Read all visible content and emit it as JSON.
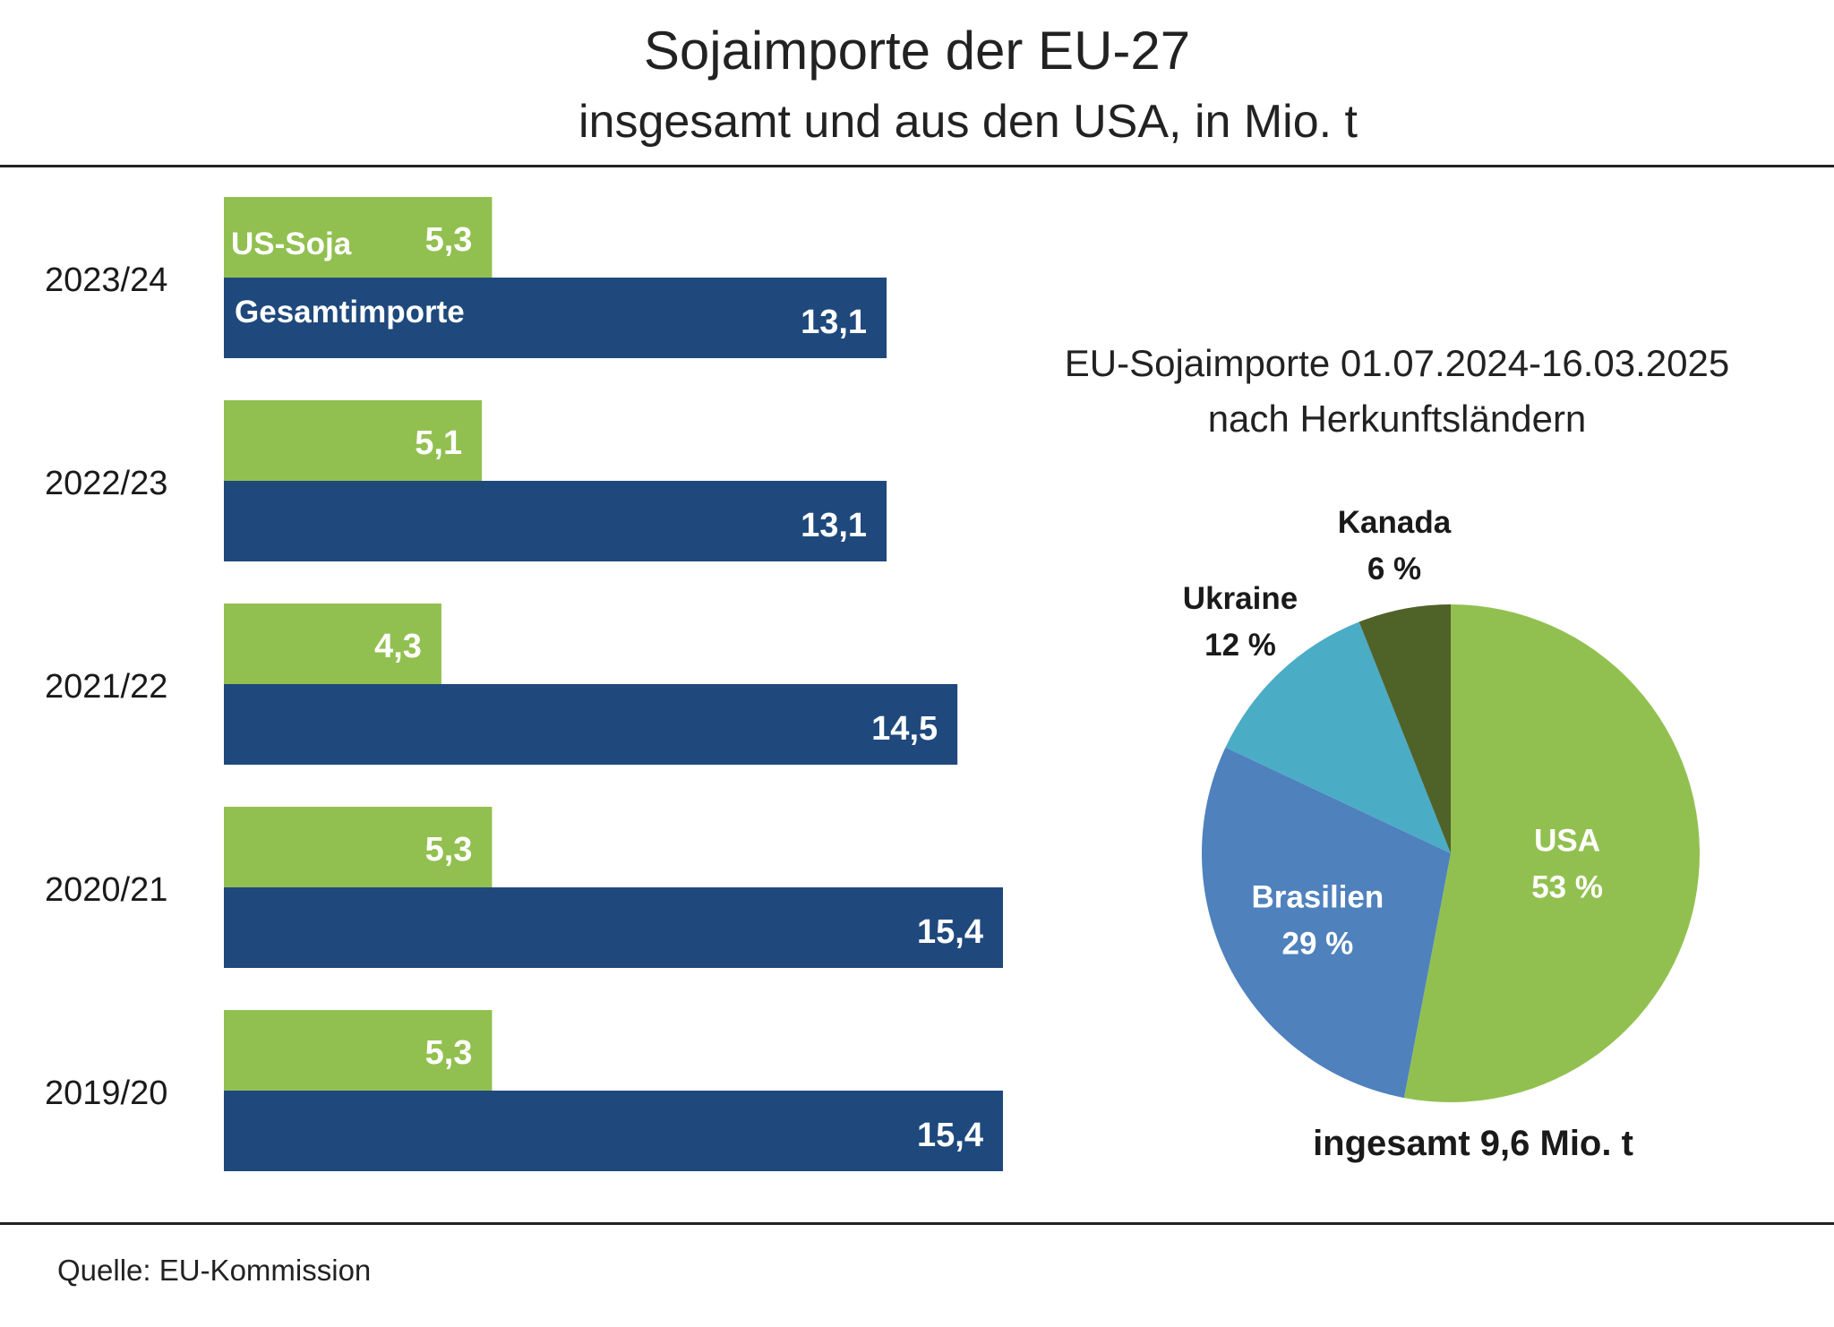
{
  "header": {
    "title": "Sojaimporte der EU-27",
    "subtitle": "insgesamt und aus den USA, in Mio. t"
  },
  "footer": {
    "source": "Quelle:  EU-Kommission"
  },
  "colors": {
    "us_soja": "#92C050",
    "gesamt": "#1F497D",
    "usa": "#92C050",
    "brasilien": "#4F81BD",
    "ukraine": "#4BACC6",
    "kanada": "#4F6228"
  },
  "chart_data": [
    {
      "type": "bar",
      "orientation": "horizontal",
      "categories": [
        "2023/24",
        "2022/23",
        "2021/22",
        "2020/21",
        "2019/20"
      ],
      "series": [
        {
          "name": "US-Soja",
          "values": [
            5.3,
            5.1,
            4.3,
            5.3,
            5.3
          ],
          "labels": [
            "5,3",
            "5,1",
            "4,3",
            "5,3",
            "5,3"
          ]
        },
        {
          "name": "Gesamtimporte",
          "values": [
            13.1,
            13.1,
            14.5,
            15.4,
            15.4
          ],
          "labels": [
            "13,1",
            "13,1",
            "14,5",
            "15,4",
            "15,4"
          ]
        }
      ],
      "xlim": [
        0,
        15.4
      ],
      "grid": false,
      "legend": "inline-first-row"
    },
    {
      "type": "pie",
      "title": "EU-Sojaimporte 01.07.2024-16.03.2025",
      "subtitle": "nach Herkunftsländern",
      "slices": [
        {
          "name": "USA",
          "value": 53,
          "label": "53 %"
        },
        {
          "name": "Brasilien",
          "value": 29,
          "label": "29 %"
        },
        {
          "name": "Ukraine",
          "value": 12,
          "label": "12 %"
        },
        {
          "name": "Kanada",
          "value": 6,
          "label": "6 %"
        }
      ],
      "total_label": "ingesamt 9,6 Mio. t"
    }
  ]
}
